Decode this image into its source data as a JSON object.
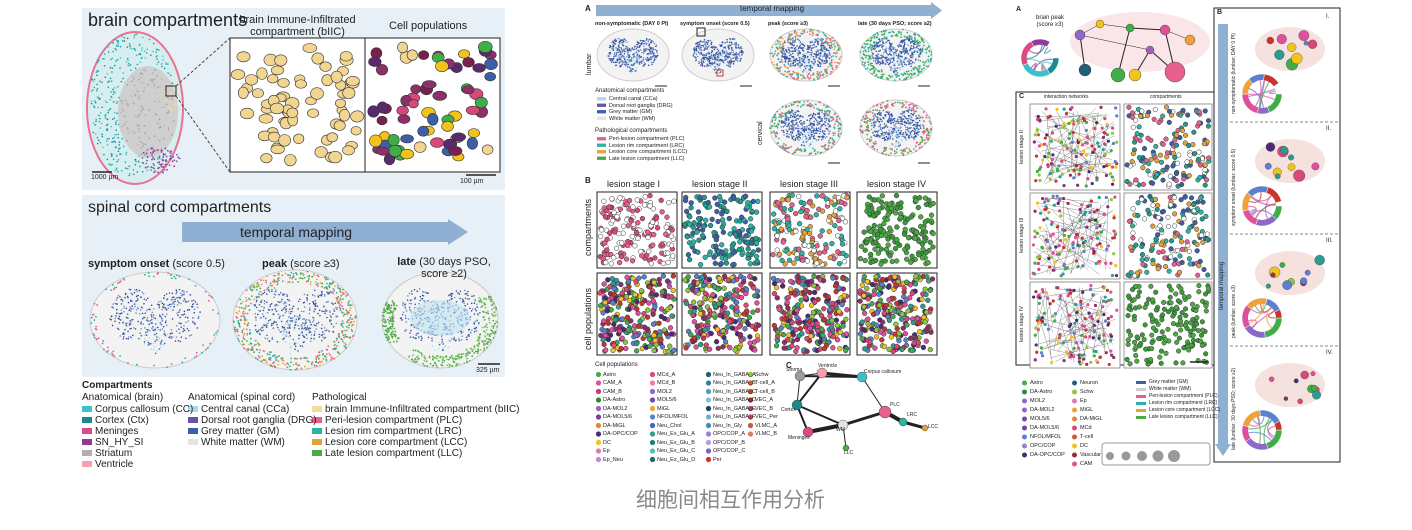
{
  "left": {
    "brain_title": "brain compartments",
    "biic_title": "brain Immune-Infiltrated compartment (bIIC)",
    "cell_pop_title": "Cell populations",
    "scale_brain": "1000 µm",
    "scale_zoom": "100 µm",
    "spinal_title": "spinal cord compartments",
    "arrow_label": "temporal mapping",
    "stages": [
      {
        "bold": "symptom onset",
        "rest": "(score 0.5)"
      },
      {
        "bold": "peak",
        "rest": "(score ≥3)"
      },
      {
        "bold": "late",
        "rest": "(30 days PSO, score ≥2)"
      }
    ],
    "scale_spinal": "325 µm",
    "legend": {
      "title": "Compartments",
      "groups": [
        {
          "title": "Anatomical (brain)",
          "items": [
            {
              "label": "Corpus callosum (CC)",
              "color": "#3cc0c9"
            },
            {
              "label": "Cortex (Ctx)",
              "color": "#1a8a8f"
            },
            {
              "label": "Meninges",
              "color": "#d94b86"
            },
            {
              "label": "SN_HY_SI",
              "color": "#8e3c96"
            },
            {
              "label": "Striatum",
              "color": "#b0b0b0"
            },
            {
              "label": "Ventricle",
              "color": "#f3a2ad"
            }
          ]
        },
        {
          "title": "Anatomical (spinal cord)",
          "items": [
            {
              "label": "Central canal (CCa)",
              "color": "#a8d8ec"
            },
            {
              "label": "Dorsal root ganglia (DRG)",
              "color": "#6b53a3"
            },
            {
              "label": "Grey matter (GM)",
              "color": "#3c5fa8"
            },
            {
              "label": "White matter (WM)",
              "color": "#e3e3e3"
            }
          ]
        },
        {
          "title": "Pathological",
          "items": [
            {
              "label": "brain Immune-Infiltrated compartment (bIIC)",
              "color": "#f3dc9a"
            },
            {
              "label": "Peri-lesion compartment (PLC)",
              "color": "#e65f8e"
            },
            {
              "label": "Lesion rim compartment (LRC)",
              "color": "#2bb3a4"
            },
            {
              "label": "Lesion core compartment (LCC)",
              "color": "#e1a33a"
            },
            {
              "label": "Late lesion compartment (LLC)",
              "color": "#4caa44"
            }
          ]
        }
      ]
    }
  },
  "middle": {
    "label_a": "A",
    "arrow_label": "temporal mapping",
    "columns": [
      "non-symptomatic (DAY 0 PI)",
      "symptom onset (score 0.5)",
      "peak (score ≥3)",
      "late (30 days PSO; score ≥2)"
    ],
    "row_lumbar": "lumbar",
    "row_cervical": "cervical",
    "legend_groups": [
      {
        "title": "Anatomical compartments",
        "items": [
          {
            "label": "Central canal (CCa)",
            "color": "#a8d8ec"
          },
          {
            "label": "Dorsal root ganglia (DRG)",
            "color": "#6b53a3"
          },
          {
            "label": "Grey matter (GM)",
            "color": "#3c5fa8"
          },
          {
            "label": "White matter (WM)",
            "color": "#e3e3e3"
          }
        ]
      },
      {
        "title": "Pathological compartments",
        "items": [
          {
            "label": "Peri-lesion compartment (PLC)",
            "color": "#e65f8e"
          },
          {
            "label": "Lesion rim compartment (LRC)",
            "color": "#2bb3a4"
          },
          {
            "label": "Lesion core compartment (LCC)",
            "color": "#e1a33a"
          },
          {
            "label": "Late lesion compartment (LLC)",
            "color": "#4caa44"
          }
        ]
      }
    ],
    "label_b": "B",
    "stages": [
      "lesion stage I",
      "lesion stage II",
      "lesion stage III",
      "lesion stage IV"
    ],
    "row_compartments": "compartments",
    "row_cells": "cell populations",
    "cell_title": "Cell populations",
    "cells": [
      [
        {
          "label": "Astro",
          "color": "#3fae49"
        },
        {
          "label": "CAM_A",
          "color": "#e0509a"
        },
        {
          "label": "CAM_B",
          "color": "#c33a7c"
        },
        {
          "label": "DA-Astro",
          "color": "#2d8a3a"
        },
        {
          "label": "DA-MOL2",
          "color": "#a35fc0"
        },
        {
          "label": "DA-MOL5/6",
          "color": "#7a3f9a"
        },
        {
          "label": "DA-MiGL",
          "color": "#e6862c"
        },
        {
          "label": "DA-OPC/COP",
          "color": "#4b2a7a"
        },
        {
          "label": "DC",
          "color": "#f2c31d"
        },
        {
          "label": "Ep",
          "color": "#d97fb0"
        },
        {
          "label": "Ep_Neu",
          "color": "#b98cd3"
        }
      ],
      [
        {
          "label": "MCd_A",
          "color": "#d9487a"
        },
        {
          "label": "MCd_B",
          "color": "#ef7aa3"
        },
        {
          "label": "MOL2",
          "color": "#8d67c9"
        },
        {
          "label": "MOL5/6",
          "color": "#6a4bb0"
        },
        {
          "label": "MiGL",
          "color": "#f0a23a"
        },
        {
          "label": "NFOL/MFOL",
          "color": "#5b7fd1"
        },
        {
          "label": "Neu_Chol",
          "color": "#3a6da8"
        },
        {
          "label": "Neu_Ex_Glu_A",
          "color": "#2a9d8f"
        },
        {
          "label": "Neu_Ex_Glu_B",
          "color": "#238076"
        },
        {
          "label": "Neu_Ex_Glu_C",
          "color": "#55bfb0"
        },
        {
          "label": "Neu_Ex_Glu_D",
          "color": "#1d6a62"
        }
      ],
      [
        {
          "label": "Neu_In_GABA_A",
          "color": "#1f5f78"
        },
        {
          "label": "Neu_In_GABA_B",
          "color": "#2e7f9e"
        },
        {
          "label": "Neu_In_GABA_C",
          "color": "#4aa0c0"
        },
        {
          "label": "Neu_In_GABA_D",
          "color": "#7cc3da"
        },
        {
          "label": "Neu_In_GABA_E",
          "color": "#15495c"
        },
        {
          "label": "Neu_In_GABA_F",
          "color": "#6db1c9"
        },
        {
          "label": "Neu_In_Gly",
          "color": "#3b8fb0"
        },
        {
          "label": "OPC/COP_A",
          "color": "#9b7fd6"
        },
        {
          "label": "OPC/COP_B",
          "color": "#b59be6"
        },
        {
          "label": "OPC/COP_C",
          "color": "#7c62bd"
        },
        {
          "label": "Per",
          "color": "#c9342e"
        }
      ],
      [
        {
          "label": "Schw",
          "color": "#8cc63f"
        },
        {
          "label": "T-cell_A",
          "color": "#d35c2c"
        },
        {
          "label": "T-cell_B",
          "color": "#b54720"
        },
        {
          "label": "VEC_A",
          "color": "#8f2f2f"
        },
        {
          "label": "VEC_B",
          "color": "#a33d5b"
        },
        {
          "label": "VEC_Per",
          "color": "#b3475f"
        },
        {
          "label": "VLMC_A",
          "color": "#c75b39"
        },
        {
          "label": "VLMC_B",
          "color": "#e07b5a"
        }
      ]
    ],
    "label_c": "C",
    "network_nodes": [
      "Stroma",
      "Ventricle",
      "Corpus callosum",
      "Cortex",
      "Meninges",
      "WM",
      "PLC",
      "LRC",
      "LCC",
      "LLC"
    ]
  },
  "right": {
    "label_a": "A",
    "brain_peak": "brain peak (score ≥3)",
    "label_c": "C",
    "col_networks": "interaction networks",
    "col_compartments": "compartments",
    "rows": [
      "lesion stage II",
      "lesion stage III",
      "lesion stage IV"
    ],
    "label_b": "B",
    "temporal": "temporal mapping",
    "numerals": [
      "I.",
      "II.",
      "III.",
      "IV."
    ],
    "b_rows": [
      "non-symptomatic (lumbar; DAY 0 PI)",
      "symptom onset (lumbar; score 0.5)",
      "peak (lumbar; score ≥3)",
      "late (lumbar; 30 days PSO; score ≥2)"
    ],
    "cells": [
      [
        {
          "label": "Astro",
          "color": "#3fae49"
        },
        {
          "label": "DA-Astro",
          "color": "#2d8a3a"
        },
        {
          "label": "MOL2",
          "color": "#8d67c9"
        },
        {
          "label": "DA-MOL2",
          "color": "#a35fc0"
        },
        {
          "label": "MOL5/6",
          "color": "#6a4bb0"
        },
        {
          "label": "DA-MOL5/6",
          "color": "#7a3f9a"
        },
        {
          "label": "NFOL/MFOL",
          "color": "#5b7fd1"
        },
        {
          "label": "OPC/COP",
          "color": "#9b7fd6"
        },
        {
          "label": "DA-OPC/COP",
          "color": "#4b2a7a"
        }
      ],
      [
        {
          "label": "Neuron",
          "color": "#1f5f78"
        },
        {
          "label": "Schw",
          "color": "#8cc63f"
        },
        {
          "label": "Ep",
          "color": "#d97fb0"
        },
        {
          "label": "MiGL",
          "color": "#f0a23a"
        },
        {
          "label": "DA-MiGL",
          "color": "#e6862c"
        },
        {
          "label": "MCd",
          "color": "#d9487a"
        },
        {
          "label": "T-cell",
          "color": "#d35c2c"
        },
        {
          "label": "DC",
          "color": "#f2c31d"
        },
        {
          "label": "Vascular",
          "color": "#8f2f2f"
        },
        {
          "label": "CAM",
          "color": "#e0509a"
        }
      ]
    ],
    "compartments": [
      {
        "label": "Grey matter (GM)",
        "color": "#3c5fa8"
      },
      {
        "label": "White matter (WM)",
        "color": "#cfcfcf"
      },
      {
        "label": "Peri-lesion compartment (PLC)",
        "color": "#e65f8e"
      },
      {
        "label": "Lesion rim compartment (LRC)",
        "color": "#2bb3a4"
      },
      {
        "label": "Lesion core compartment (LCC)",
        "color": "#e1a33a"
      },
      {
        "label": "Late lesion compartment (LLC)",
        "color": "#4caa44"
      }
    ]
  },
  "caption": "细胞间相互作用分析"
}
